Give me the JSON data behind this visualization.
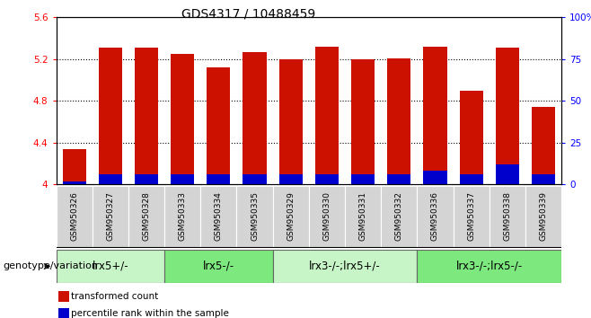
{
  "title": "GDS4317 / 10488459",
  "samples": [
    "GSM950326",
    "GSM950327",
    "GSM950328",
    "GSM950333",
    "GSM950334",
    "GSM950335",
    "GSM950329",
    "GSM950330",
    "GSM950331",
    "GSM950332",
    "GSM950336",
    "GSM950337",
    "GSM950338",
    "GSM950339"
  ],
  "red_values": [
    4.34,
    5.31,
    5.31,
    5.25,
    5.12,
    5.27,
    5.2,
    5.32,
    5.2,
    5.21,
    5.32,
    4.9,
    5.31,
    4.74
  ],
  "blue_pct": [
    2,
    6,
    6,
    6,
    6,
    6,
    6,
    6,
    6,
    6,
    8,
    6,
    12,
    6
  ],
  "y_min": 4.0,
  "y_max": 5.6,
  "yticks_left": [
    4.0,
    4.4,
    4.8,
    5.2,
    5.6
  ],
  "yticks_right": [
    0,
    25,
    50,
    75,
    100
  ],
  "groups": [
    {
      "label": "lrx5+/-",
      "start": 0,
      "end": 2,
      "color": "#c8f5c8"
    },
    {
      "label": "lrx5-/-",
      "start": 3,
      "end": 5,
      "color": "#7de87d"
    },
    {
      "label": "lrx3-/-;lrx5+/-",
      "start": 6,
      "end": 9,
      "color": "#c8f5c8"
    },
    {
      "label": "lrx3-/-;lrx5-/-",
      "start": 10,
      "end": 13,
      "color": "#7de87d"
    }
  ],
  "bar_color_red": "#cc1100",
  "bar_color_blue": "#0000cc",
  "title_fontsize": 10,
  "tick_fontsize": 7.5,
  "sample_fontsize": 6.5,
  "group_label_fontsize": 8.5,
  "legend_fontsize": 7.5,
  "genotype_fontsize": 8,
  "bar_width": 0.65
}
